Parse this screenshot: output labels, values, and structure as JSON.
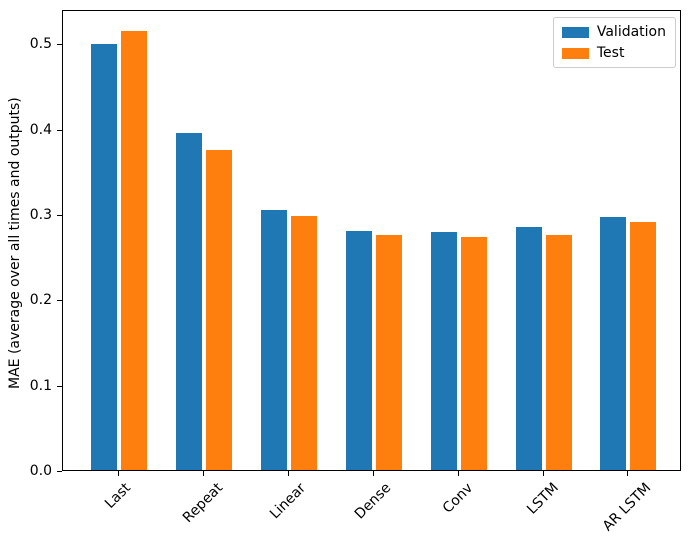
{
  "chart_data": {
    "type": "bar",
    "title": "",
    "xlabel": "",
    "ylabel": "MAE (average over all times and outputs)",
    "categories": [
      "Last",
      "Repeat",
      "Linear",
      "Dense",
      "Conv",
      "LSTM",
      "AR LSTM"
    ],
    "series": [
      {
        "name": "Validation",
        "color": "#1f77b4",
        "values": [
          0.501,
          0.396,
          0.306,
          0.281,
          0.28,
          0.286,
          0.298
        ]
      },
      {
        "name": "Test",
        "color": "#ff7f0e",
        "values": [
          0.516,
          0.377,
          0.299,
          0.276,
          0.274,
          0.277,
          0.292
        ]
      }
    ],
    "ylim": [
      0,
      0.54
    ],
    "yticks": [
      0.0,
      0.1,
      0.2,
      0.3,
      0.4,
      0.5
    ],
    "ytick_labels": [
      "0.0",
      "0.1",
      "0.2",
      "0.3",
      "0.4",
      "0.5"
    ],
    "xtick_rotation_deg": 45,
    "grid": false,
    "legend": {
      "position": "upper right"
    },
    "axis_color": "#000000",
    "background_color": "#ffffff"
  }
}
